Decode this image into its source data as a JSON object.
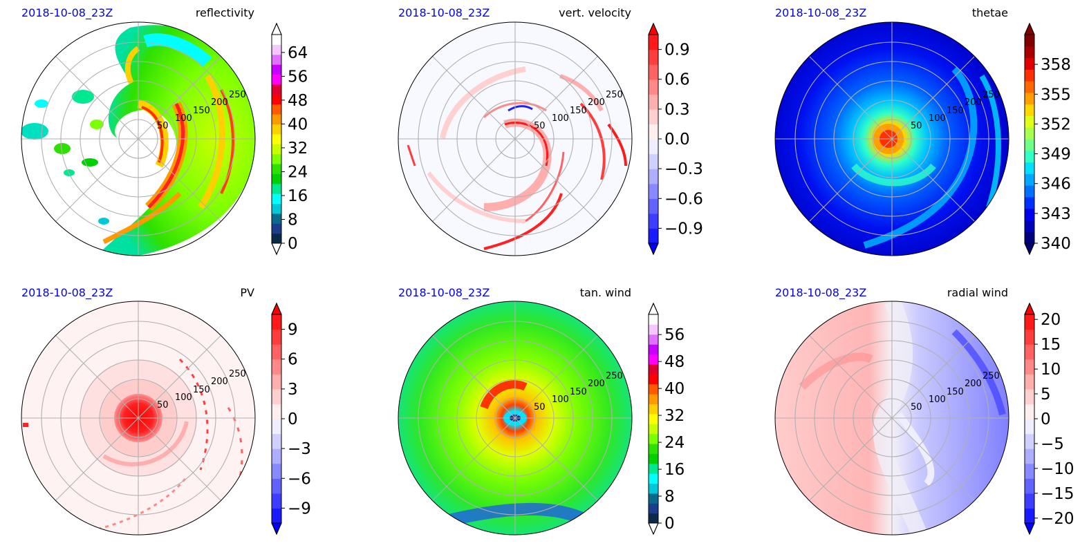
{
  "figure": {
    "panels": [
      {
        "date": "2018-10-08_23Z",
        "title": "reflectivity",
        "rlabels": [
          "50",
          "100",
          "150",
          "200",
          "250"
        ],
        "colorbar": {
          "ticks": [
            "0",
            "8",
            "16",
            "24",
            "32",
            "40",
            "48",
            "56",
            "64"
          ],
          "colors": [
            "#0b2a4a",
            "#1c3d8c",
            "#0a6a8a",
            "#00c8d8",
            "#00ffff",
            "#00e890",
            "#00d000",
            "#2ee000",
            "#7cff00",
            "#c8ff00",
            "#ffff00",
            "#ffd000",
            "#ff9900",
            "#ff5a00",
            "#ff0000",
            "#e00030",
            "#ff00ff",
            "#c800ff",
            "#e070ff",
            "#f4c8ff",
            "#ffffff"
          ],
          "extend_min_color": "#ffffff",
          "extend_max_color": "#ffffff"
        }
      },
      {
        "date": "2018-10-08_23Z",
        "title": "vert. velocity",
        "rlabels": [
          "50",
          "100",
          "150",
          "200",
          "250"
        ],
        "colorbar": {
          "ticks": [
            "−0.9",
            "−0.6",
            "−0.3",
            "0.0",
            "0.3",
            "0.6",
            "0.9"
          ],
          "colors": [
            "#1a1aff",
            "#3d3dff",
            "#6262ff",
            "#8888ff",
            "#aeaeff",
            "#d0d0ff",
            "#eeeeff",
            "#ffeeee",
            "#ffd0d0",
            "#ffaeae",
            "#ff8888",
            "#ff6262",
            "#ff3d3d",
            "#ff1a1a"
          ],
          "extend_min_color": "#0000ff",
          "extend_max_color": "#ff0000"
        }
      },
      {
        "date": "2018-10-08_23Z",
        "title": "thetae",
        "rlabels": [
          "50",
          "100",
          "150",
          "200",
          "250"
        ],
        "colorbar": {
          "ticks": [
            "340",
            "343",
            "346",
            "349",
            "352",
            "355",
            "358"
          ],
          "colors": [
            "#00007f",
            "#0000b8",
            "#0000f0",
            "#0030ff",
            "#0070ff",
            "#00a8ff",
            "#00e0ff",
            "#30ffc8",
            "#70ff88",
            "#a8ff50",
            "#e0ff18",
            "#ffd800",
            "#ffa000",
            "#ff6800",
            "#ff3000",
            "#e00000",
            "#a80000",
            "#800000"
          ],
          "extend_min_color": "#00007f",
          "extend_max_color": "#800000"
        }
      },
      {
        "date": "2018-10-08_23Z",
        "title": "PV",
        "rlabels": [
          "50",
          "100",
          "150",
          "200",
          "250"
        ],
        "colorbar": {
          "ticks": [
            "−9",
            "−6",
            "−3",
            "0",
            "3",
            "6",
            "9"
          ],
          "colors": [
            "#1a1aff",
            "#3d3dff",
            "#6262ff",
            "#8888ff",
            "#aeaeff",
            "#d0d0ff",
            "#eeeeff",
            "#ffeeee",
            "#ffd0d0",
            "#ffaeae",
            "#ff8888",
            "#ff6262",
            "#ff3d3d",
            "#ff1a1a"
          ],
          "extend_min_color": "#0000ff",
          "extend_max_color": "#ff0000"
        }
      },
      {
        "date": "2018-10-08_23Z",
        "title": "tan. wind",
        "rlabels": [
          "50",
          "100",
          "150",
          "200",
          "250"
        ],
        "colorbar": {
          "ticks": [
            "0",
            "8",
            "16",
            "24",
            "32",
            "40",
            "48",
            "56"
          ],
          "colors": [
            "#0b2a4a",
            "#1c3d8c",
            "#0a6a8a",
            "#00c8d8",
            "#00ffff",
            "#00e890",
            "#00d000",
            "#2ee000",
            "#7cff00",
            "#c8ff00",
            "#ffff00",
            "#ffd000",
            "#ff9900",
            "#ff5a00",
            "#ff0000",
            "#e00030",
            "#ff00ff",
            "#c800ff",
            "#e070ff",
            "#f4c8ff",
            "#ffffff"
          ],
          "extend_min_color": "#ffffff",
          "extend_max_color": "#ffffff"
        }
      },
      {
        "date": "2018-10-08_23Z",
        "title": "radial wind",
        "rlabels": [
          "50",
          "100",
          "150",
          "200",
          "250"
        ],
        "colorbar": {
          "ticks": [
            "−20",
            "−15",
            "−10",
            "−5",
            "0",
            "5",
            "10",
            "15",
            "20"
          ],
          "colors": [
            "#1a1aff",
            "#3d3dff",
            "#6262ff",
            "#8888ff",
            "#aeaeff",
            "#d0d0ff",
            "#eeeeff",
            "#ffeeee",
            "#ffd0d0",
            "#ffaeae",
            "#ff8888",
            "#ff6262",
            "#ff3d3d",
            "#ff1a1a"
          ],
          "extend_min_color": "#0000ff",
          "extend_max_color": "#ff0000"
        }
      }
    ]
  },
  "chart_data": [
    {
      "type": "heatmap",
      "projection": "polar",
      "title": "reflectivity",
      "subtitle": "2018-10-08_23Z",
      "radial_ticks": [
        50,
        100,
        150,
        200,
        250
      ],
      "rlim": [
        0,
        300
      ],
      "colorbar_range": [
        0,
        70
      ],
      "colorbar_ticks": [
        0,
        8,
        16,
        24,
        32,
        40,
        48,
        56,
        64
      ],
      "colorbar_extend": "both",
      "grid": true
    },
    {
      "type": "heatmap",
      "projection": "polar",
      "title": "vert. velocity",
      "subtitle": "2018-10-08_23Z",
      "radial_ticks": [
        50,
        100,
        150,
        200,
        250
      ],
      "rlim": [
        0,
        300
      ],
      "colorbar_range": [
        -1.05,
        1.05
      ],
      "colorbar_ticks": [
        -0.9,
        -0.6,
        -0.3,
        0.0,
        0.3,
        0.6,
        0.9
      ],
      "colorbar_extend": "both",
      "grid": true
    },
    {
      "type": "heatmap",
      "projection": "polar",
      "title": "thetae",
      "subtitle": "2018-10-08_23Z",
      "radial_ticks": [
        50,
        100,
        150,
        200,
        250
      ],
      "rlim": [
        0,
        300
      ],
      "colorbar_range": [
        340,
        361
      ],
      "colorbar_ticks": [
        340,
        343,
        346,
        349,
        352,
        355,
        358
      ],
      "colorbar_extend": "both",
      "grid": true
    },
    {
      "type": "heatmap",
      "projection": "polar",
      "title": "PV",
      "subtitle": "2018-10-08_23Z",
      "radial_ticks": [
        50,
        100,
        150,
        200,
        250
      ],
      "rlim": [
        0,
        300
      ],
      "colorbar_range": [
        -10.5,
        10.5
      ],
      "colorbar_ticks": [
        -9,
        -6,
        -3,
        0,
        3,
        6,
        9
      ],
      "colorbar_extend": "both",
      "grid": true
    },
    {
      "type": "heatmap",
      "projection": "polar",
      "title": "tan. wind",
      "subtitle": "2018-10-08_23Z",
      "radial_ticks": [
        50,
        100,
        150,
        200,
        250
      ],
      "rlim": [
        0,
        300
      ],
      "colorbar_range": [
        0,
        62
      ],
      "colorbar_ticks": [
        0,
        8,
        16,
        24,
        32,
        40,
        48,
        56
      ],
      "colorbar_extend": "both",
      "grid": true
    },
    {
      "type": "heatmap",
      "projection": "polar",
      "title": "radial wind",
      "subtitle": "2018-10-08_23Z",
      "radial_ticks": [
        50,
        100,
        150,
        200,
        250
      ],
      "rlim": [
        0,
        300
      ],
      "colorbar_range": [
        -21,
        21
      ],
      "colorbar_ticks": [
        -20,
        -15,
        -10,
        -5,
        0,
        5,
        10,
        15,
        20
      ],
      "colorbar_extend": "both",
      "grid": true
    }
  ]
}
